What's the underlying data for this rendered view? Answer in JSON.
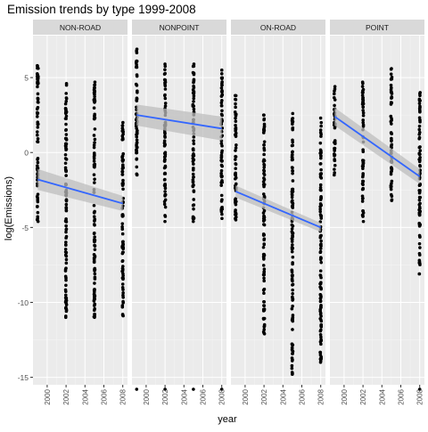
{
  "chart_data": {
    "type": "scatter",
    "title": "Emission trends by type 1999-2008",
    "xlabel": "year",
    "ylabel": "log(Emissions)",
    "xlim": [
      1998.5,
      2008.5
    ],
    "ylim": [
      -15.5,
      7.8
    ],
    "x_ticks": [
      2000,
      2002,
      2004,
      2006,
      2008
    ],
    "y_ticks": [
      5,
      0,
      -5,
      -10,
      -15
    ],
    "colors": {
      "panel_bg": "#EBEBEB",
      "strip_bg": "#D9D9D9",
      "grid": "#FFFFFF",
      "points": "#000000",
      "trend_line": "#3366FF",
      "confidence_band": "#BDBDBD"
    },
    "facets": [
      {
        "label": "NON-ROAD",
        "trend": {
          "y1999": -1.8,
          "y2008": -3.4
        },
        "band_halfwidth": {
          "y1999": 0.7,
          "y2008": 0.5
        },
        "columns": [
          {
            "year": 1999,
            "min": -4.6,
            "max": 5.8,
            "outliers": [
              4.6
            ]
          },
          {
            "year": 2002,
            "min": -11.0,
            "max": 4.6,
            "outliers": []
          },
          {
            "year": 2005,
            "min": -11.0,
            "max": 4.7,
            "outliers": []
          },
          {
            "year": 2008,
            "min": -10.9,
            "max": 2.0,
            "outliers": []
          }
        ]
      },
      {
        "label": "NONPOINT",
        "trend": {
          "y1999": 2.5,
          "y2008": 1.6
        },
        "band_halfwidth": {
          "y1999": 0.7,
          "y2008": 0.8
        },
        "columns": [
          {
            "year": 1999,
            "min": -1.5,
            "max": 6.9,
            "outliers": [
              -15.8
            ]
          },
          {
            "year": 2002,
            "min": -4.6,
            "max": 5.9,
            "outliers": [
              -15.8
            ]
          },
          {
            "year": 2005,
            "min": -4.6,
            "max": 5.9,
            "outliers": [
              -15.8
            ]
          },
          {
            "year": 2008,
            "min": -4.4,
            "max": 5.5,
            "outliers": [
              -15.8
            ]
          }
        ]
      },
      {
        "label": "ON-ROAD",
        "trend": {
          "y1999": -2.6,
          "y2008": -5.0
        },
        "band_halfwidth": {
          "y1999": 0.4,
          "y2008": 0.3
        },
        "columns": [
          {
            "year": 1999,
            "min": -4.5,
            "max": 3.8,
            "outliers": []
          },
          {
            "year": 2002,
            "min": -12.1,
            "max": 2.5,
            "outliers": []
          },
          {
            "year": 2005,
            "min": -14.8,
            "max": 2.6,
            "outliers": []
          },
          {
            "year": 2008,
            "min": -14.0,
            "max": 2.3,
            "outliers": []
          }
        ]
      },
      {
        "label": "POINT",
        "trend": {
          "y1999": 2.4,
          "y2008": -1.6
        },
        "band_halfwidth": {
          "y1999": 0.6,
          "y2008": 0.5
        },
        "columns": [
          {
            "year": 1999,
            "min": -1.5,
            "max": 4.4,
            "outliers": []
          },
          {
            "year": 2002,
            "min": -4.6,
            "max": 4.7,
            "outliers": []
          },
          {
            "year": 2005,
            "min": -3.2,
            "max": 5.6,
            "outliers": []
          },
          {
            "year": 2008,
            "min": -8.1,
            "max": 4.0,
            "outliers": [
              -15.8
            ]
          }
        ]
      }
    ]
  }
}
